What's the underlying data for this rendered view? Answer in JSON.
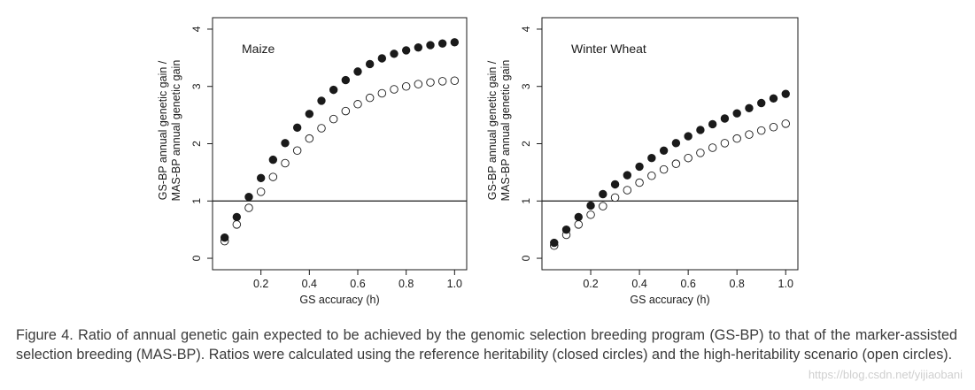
{
  "chart_data": [
    {
      "type": "scatter",
      "title": "Maize",
      "xlabel": "GS accuracy (h)",
      "ylabel": [
        "GS-BP annual genetic gain /",
        "MAS-BP annual genetic gain"
      ],
      "xlim": [
        0.0,
        1.05
      ],
      "ylim": [
        -0.2,
        4.2
      ],
      "xticks": [
        0.2,
        0.4,
        0.6,
        0.8,
        1.0
      ],
      "xtick_labels": [
        "0.2",
        "0.4",
        "0.6",
        "0.8",
        "1.0"
      ],
      "yticks": [
        0,
        1,
        2,
        3,
        4
      ],
      "ytick_labels": [
        "0",
        "1",
        "2",
        "3",
        "4"
      ],
      "reference_line": 1,
      "x": [
        0.05,
        0.1,
        0.15,
        0.2,
        0.25,
        0.3,
        0.35,
        0.4,
        0.45,
        0.5,
        0.55,
        0.6,
        0.65,
        0.7,
        0.75,
        0.8,
        0.85,
        0.9,
        0.95,
        1.0
      ],
      "series": [
        {
          "name": "reference heritability (closed circles)",
          "marker": "closed",
          "values": [
            0.36,
            0.72,
            1.07,
            1.4,
            1.72,
            2.01,
            2.28,
            2.52,
            2.75,
            2.94,
            3.11,
            3.26,
            3.39,
            3.49,
            3.57,
            3.63,
            3.68,
            3.72,
            3.75,
            3.77
          ]
        },
        {
          "name": "high-heritability scenario (open circles)",
          "marker": "open",
          "values": [
            0.3,
            0.59,
            0.88,
            1.16,
            1.42,
            1.66,
            1.88,
            2.09,
            2.27,
            2.43,
            2.57,
            2.69,
            2.8,
            2.88,
            2.95,
            3.0,
            3.04,
            3.07,
            3.09,
            3.1
          ]
        }
      ]
    },
    {
      "type": "scatter",
      "title": "Winter Wheat",
      "xlabel": "GS accuracy (h)",
      "ylabel": [
        "GS-BP annual genetic gain /",
        "MAS-BP annual genetic gain"
      ],
      "xlim": [
        0.0,
        1.05
      ],
      "ylim": [
        -0.2,
        4.2
      ],
      "xticks": [
        0.2,
        0.4,
        0.6,
        0.8,
        1.0
      ],
      "xtick_labels": [
        "0.2",
        "0.4",
        "0.6",
        "0.8",
        "1.0"
      ],
      "yticks": [
        0,
        1,
        2,
        3,
        4
      ],
      "ytick_labels": [
        "0",
        "1",
        "2",
        "3",
        "4"
      ],
      "reference_line": 1,
      "x": [
        0.05,
        0.1,
        0.15,
        0.2,
        0.25,
        0.3,
        0.35,
        0.4,
        0.45,
        0.5,
        0.55,
        0.6,
        0.65,
        0.7,
        0.75,
        0.8,
        0.85,
        0.9,
        0.95,
        1.0
      ],
      "series": [
        {
          "name": "reference heritability (closed circles)",
          "marker": "closed",
          "values": [
            0.27,
            0.5,
            0.72,
            0.92,
            1.12,
            1.29,
            1.45,
            1.6,
            1.75,
            1.88,
            2.01,
            2.13,
            2.24,
            2.34,
            2.44,
            2.53,
            2.62,
            2.71,
            2.79,
            2.87
          ]
        },
        {
          "name": "high-heritability scenario (open circles)",
          "marker": "open",
          "values": [
            0.22,
            0.41,
            0.59,
            0.76,
            0.91,
            1.06,
            1.19,
            1.32,
            1.44,
            1.55,
            1.65,
            1.75,
            1.84,
            1.93,
            2.01,
            2.09,
            2.16,
            2.23,
            2.29,
            2.35
          ]
        }
      ]
    }
  ],
  "caption": "Figure 4. Ratio of annual genetic gain expected to be achieved by the genomic selection breeding program (GS-BP) to that of the marker-assisted selection breeding (MAS-BP). Ratios were calculated using the reference heritability (closed circles) and the high-heritability scenario (open circles).",
  "watermark": "https://blog.csdn.net/yijiaobani",
  "colors": {
    "ink": "#1a1a1a",
    "text": "#3a3a3a",
    "watermark": "#cfcfcf"
  }
}
